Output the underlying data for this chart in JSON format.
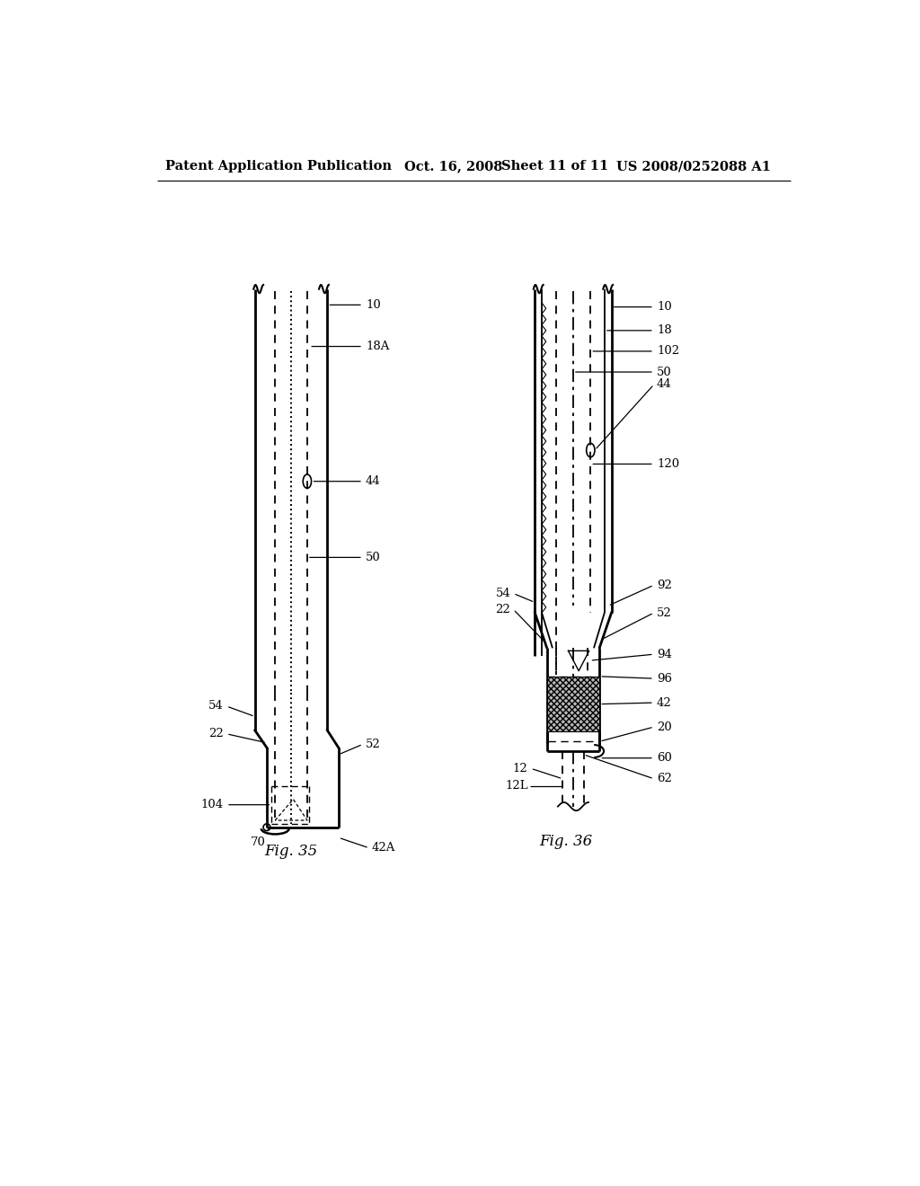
{
  "background_color": "#ffffff",
  "header_text": "Patent Application Publication",
  "header_date": "Oct. 16, 2008  Sheet 11 of 11",
  "header_patent": "US 2008/0252088 A1",
  "fig35_caption": "Fig. 35",
  "fig36_caption": "Fig. 36",
  "line_color": "#000000"
}
